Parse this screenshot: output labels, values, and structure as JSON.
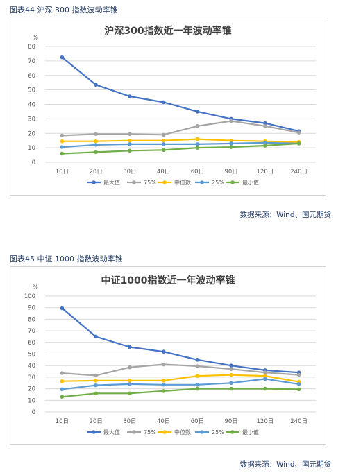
{
  "figure1": {
    "caption": "图表44 沪深 300 指数波动率锥",
    "source": "数据来源：Wind、国元期货"
  },
  "figure2": {
    "caption": "图表45 中证 1000 指数波动率锥",
    "source": "数据来源：Wind、国元期货"
  },
  "colors": {
    "max": "#4472c4",
    "p75": "#a5a5a5",
    "median": "#ffc000",
    "p25": "#5b9bd5",
    "min": "#70ad47",
    "grid": "#d9d9d9",
    "text": "#595959"
  },
  "chart_data": [
    {
      "type": "line",
      "title": "沪深300指数近一年波动率锥",
      "ylabel": "%",
      "ylim": [
        0,
        80
      ],
      "yticks": [
        0,
        10,
        20,
        30,
        40,
        50,
        60,
        70,
        80
      ],
      "categories": [
        "10日",
        "20日",
        "30日",
        "40日",
        "60日",
        "90日",
        "120日",
        "240日"
      ],
      "grid": true,
      "legend_position": "bottom",
      "series": [
        {
          "name": "最大值",
          "color": "#4472c4",
          "values": [
            72.5,
            53.5,
            45.5,
            41.5,
            35,
            30,
            27,
            21.5
          ]
        },
        {
          "name": "75%",
          "color": "#a5a5a5",
          "values": [
            18.5,
            19.5,
            19.5,
            19,
            25,
            28.5,
            25,
            20.5
          ]
        },
        {
          "name": "中位数",
          "color": "#ffc000",
          "values": [
            14.5,
            14.5,
            15,
            15,
            16,
            15,
            14.5,
            14
          ]
        },
        {
          "name": "25%",
          "color": "#5b9bd5",
          "values": [
            10.5,
            12,
            12.5,
            12.5,
            12.5,
            13,
            13.5,
            13
          ]
        },
        {
          "name": "最小值",
          "color": "#70ad47",
          "values": [
            6,
            7,
            8,
            8.5,
            10,
            10.5,
            11.5,
            13
          ]
        }
      ]
    },
    {
      "type": "line",
      "title": "中证1000指数近一年波动率锥",
      "ylabel": "%",
      "ylim": [
        0,
        100
      ],
      "yticks": [
        0,
        10,
        20,
        30,
        40,
        50,
        60,
        70,
        80,
        90,
        100
      ],
      "categories": [
        "10日",
        "20日",
        "30日",
        "40日",
        "60日",
        "90日",
        "120日",
        "240日"
      ],
      "grid": true,
      "legend_position": "bottom",
      "series": [
        {
          "name": "最大值",
          "color": "#4472c4",
          "values": [
            89.5,
            65,
            56,
            52,
            45,
            40,
            36,
            34
          ]
        },
        {
          "name": "75%",
          "color": "#a5a5a5",
          "values": [
            33.5,
            31.5,
            38.5,
            41,
            39.5,
            37,
            34,
            32
          ]
        },
        {
          "name": "中位数",
          "color": "#ffc000",
          "values": [
            26.5,
            27,
            27,
            27,
            31,
            32,
            31,
            26
          ]
        },
        {
          "name": "25%",
          "color": "#5b9bd5",
          "values": [
            19.5,
            23,
            24,
            23.5,
            23.5,
            25,
            28.5,
            24
          ]
        },
        {
          "name": "最小值",
          "color": "#70ad47",
          "values": [
            13,
            16,
            16,
            18,
            20,
            20,
            20,
            19.5
          ]
        }
      ]
    }
  ]
}
